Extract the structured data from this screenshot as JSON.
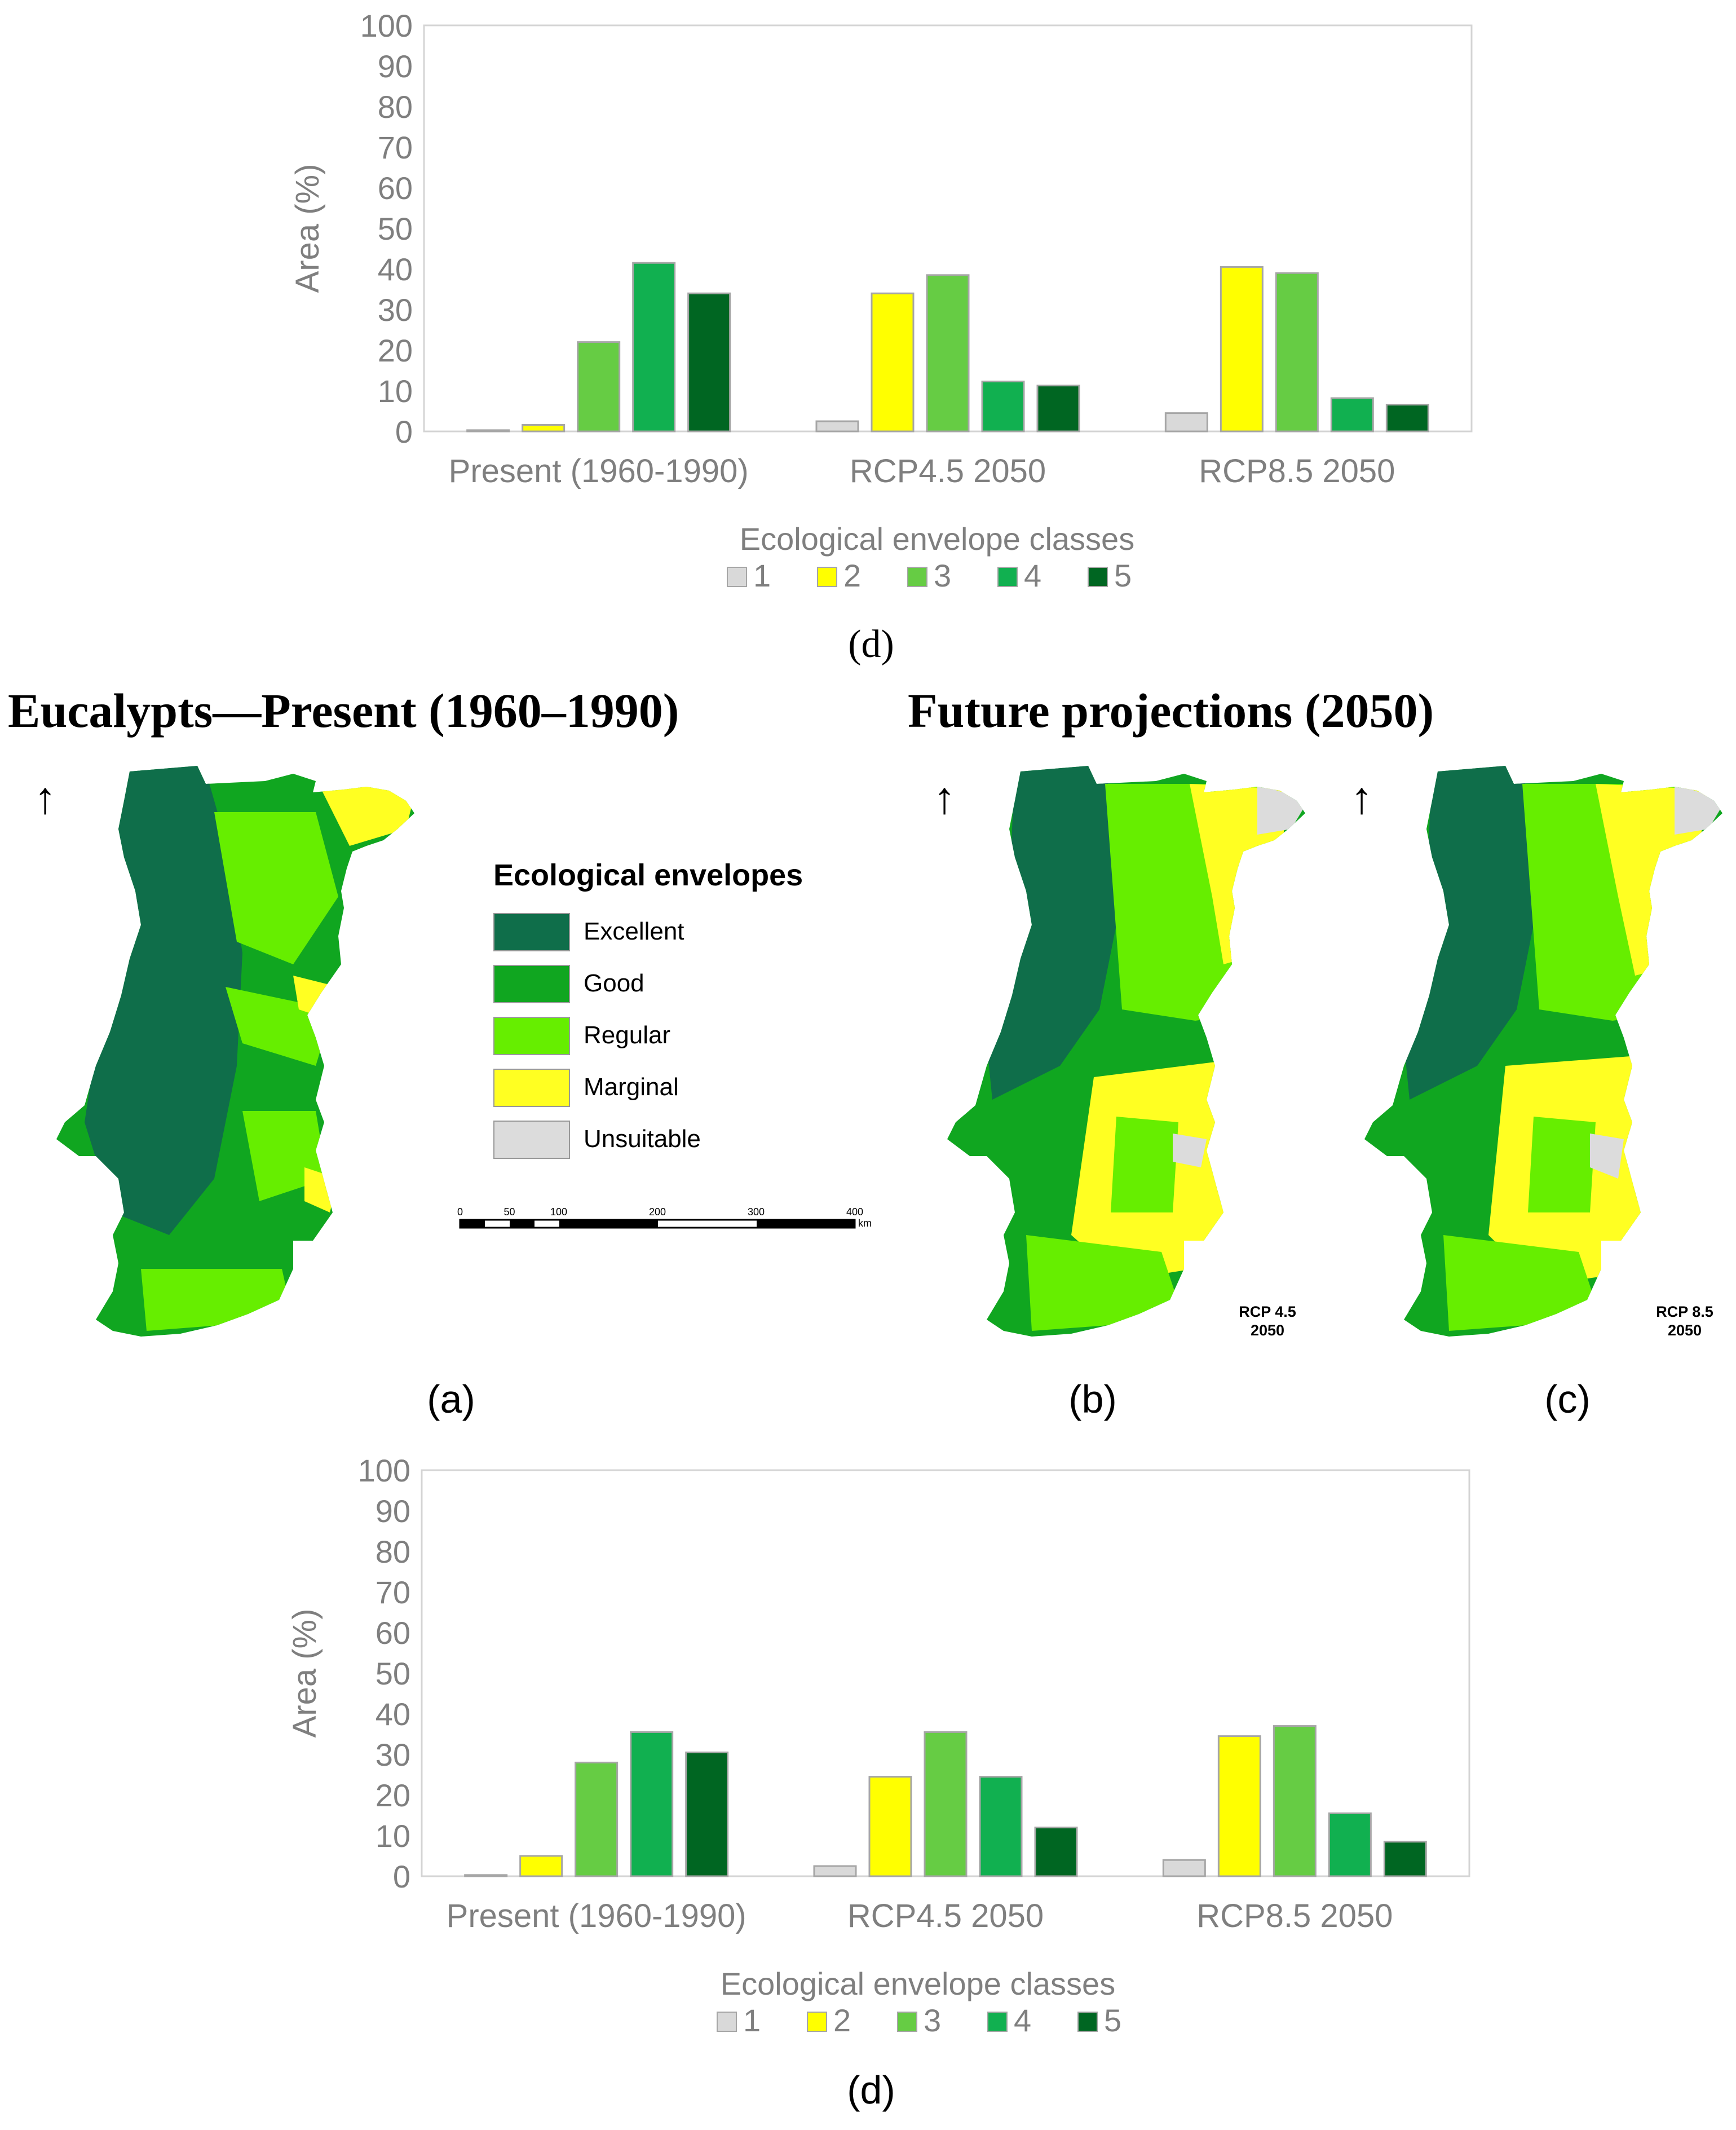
{
  "colors": {
    "class1": "#d9d9d9",
    "class2": "#ffff00",
    "class3": "#66cc44",
    "class4": "#11b050",
    "class5": "#006622",
    "excellent": "#0f6e4a",
    "good": "#10a620",
    "regular": "#66ee00",
    "marginal": "#ffff22",
    "unsuitable": "#dcdcdc"
  },
  "chart_data": [
    {
      "type": "bar",
      "panel_label": "(d)",
      "categories": [
        "Present (1960-1990)",
        "RCP4.5 2050",
        "RCP8.5 2050"
      ],
      "series": [
        {
          "name": "1",
          "values": [
            0.3,
            2.5,
            4.5
          ]
        },
        {
          "name": "2",
          "values": [
            1.6,
            34,
            40.5
          ]
        },
        {
          "name": "3",
          "values": [
            22,
            38.5,
            39
          ]
        },
        {
          "name": "4",
          "values": [
            41.5,
            12.3,
            8.2
          ]
        },
        {
          "name": "5",
          "values": [
            34,
            11.3,
            6.6
          ]
        }
      ],
      "ylabel": "Area (%)",
      "xlabel": "",
      "ylim": [
        0,
        100
      ],
      "yticks": [
        "0",
        "10",
        "20",
        "30",
        "40",
        "50",
        "60",
        "70",
        "80",
        "90",
        "100"
      ],
      "legend_title": "Ecological envelope classes",
      "legend_position": "bottom"
    },
    {
      "type": "bar",
      "panel_label": "(d)",
      "categories": [
        "Present (1960-1990)",
        "RCP4.5 2050",
        "RCP8.5 2050"
      ],
      "series": [
        {
          "name": "1",
          "values": [
            0.3,
            2.5,
            4
          ]
        },
        {
          "name": "2",
          "values": [
            5,
            24.5,
            34.5
          ]
        },
        {
          "name": "3",
          "values": [
            28,
            35.5,
            37
          ]
        },
        {
          "name": "4",
          "values": [
            35.5,
            24.5,
            15.5
          ]
        },
        {
          "name": "5",
          "values": [
            30.5,
            12,
            8.5
          ]
        }
      ],
      "ylabel": "Area (%)",
      "xlabel": "",
      "ylim": [
        0,
        100
      ],
      "yticks": [
        "0",
        "10",
        "20",
        "30",
        "40",
        "50",
        "60",
        "70",
        "80",
        "90",
        "100"
      ],
      "legend_title": "Ecological envelope classes",
      "legend_position": "bottom"
    }
  ],
  "maps": {
    "present_title": "Eucalypts—Present (1960–1990)",
    "future_title": "Future projections (2050)",
    "north_arrow": "↑",
    "legend_title": "Ecological envelopes",
    "legend_items": [
      "Excellent",
      "Good",
      "Regular",
      "Marginal",
      "Unsuitable"
    ],
    "scale_ticks": [
      "0",
      "50",
      "100",
      "200",
      "300",
      "400"
    ],
    "scale_unit": "km",
    "panel_a": "(a)",
    "panel_b": "(b)",
    "panel_c": "(c)",
    "rcp45_line1": "RCP 4.5",
    "rcp45_line2": "2050",
    "rcp85_line1": "RCP 8.5",
    "rcp85_line2": "2050"
  }
}
